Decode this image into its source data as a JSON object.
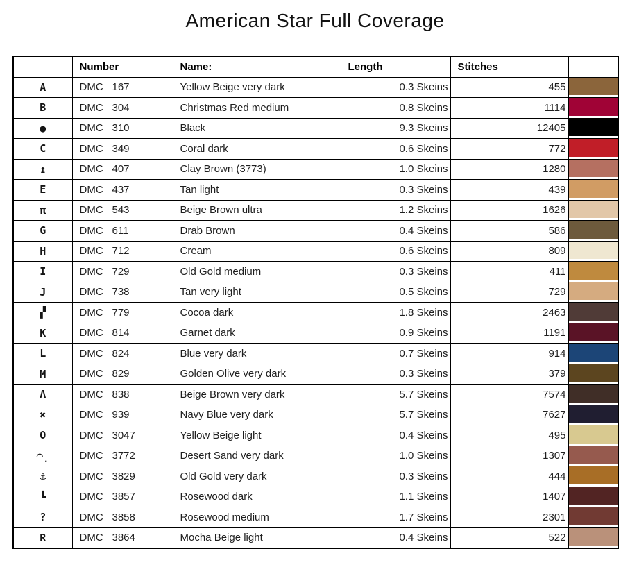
{
  "title": "American Star Full Coverage",
  "table": {
    "headers": {
      "symbol": "",
      "number": "Number",
      "name": "Name:",
      "length": "Length",
      "stitches": "Stitches",
      "color": ""
    },
    "rows": [
      {
        "symbol": "A",
        "brand": "DMC",
        "code": "167",
        "name": "Yellow Beige very dark",
        "length": "0.3 Skeins",
        "stitches": "455",
        "color": "#8b653b"
      },
      {
        "symbol": "B",
        "brand": "DMC",
        "code": "304",
        "name": "Christmas Red medium",
        "length": "0.8 Skeins",
        "stitches": "1114",
        "color": "#a00336"
      },
      {
        "symbol": "●",
        "brand": "DMC",
        "code": "310",
        "name": "Black",
        "length": "9.3 Skeins",
        "stitches": "12405",
        "color": "#000000"
      },
      {
        "symbol": "C",
        "brand": "DMC",
        "code": "349",
        "name": "Coral dark",
        "length": "0.6 Skeins",
        "stitches": "772",
        "color": "#c11e28"
      },
      {
        "symbol": "↥",
        "brand": "DMC",
        "code": "407",
        "name": "Clay Brown (3773)",
        "length": "1.0 Skeins",
        "stitches": "1280",
        "color": "#b57061"
      },
      {
        "symbol": "E",
        "brand": "DMC",
        "code": "437",
        "name": "Tan light",
        "length": "0.3 Skeins",
        "stitches": "439",
        "color": "#d19c64"
      },
      {
        "symbol": "π",
        "brand": "DMC",
        "code": "543",
        "name": "Beige Brown ultra",
        "length": "1.2 Skeins",
        "stitches": "1626",
        "color": "#e2c7a8"
      },
      {
        "symbol": "G",
        "brand": "DMC",
        "code": "611",
        "name": "Drab Brown",
        "length": "0.4 Skeins",
        "stitches": "586",
        "color": "#6d5a3c"
      },
      {
        "symbol": "H",
        "brand": "DMC",
        "code": "712",
        "name": "Cream",
        "length": "0.6 Skeins",
        "stitches": "809",
        "color": "#efe7d1"
      },
      {
        "symbol": "I",
        "brand": "DMC",
        "code": "729",
        "name": "Old Gold medium",
        "length": "0.3 Skeins",
        "stitches": "411",
        "color": "#bf8a3e"
      },
      {
        "symbol": "J",
        "brand": "DMC",
        "code": "738",
        "name": "Tan very light",
        "length": "0.5 Skeins",
        "stitches": "729",
        "color": "#d5ab80"
      },
      {
        "symbol": "▞",
        "brand": "DMC",
        "code": "779",
        "name": "Cocoa dark",
        "length": "1.8 Skeins",
        "stitches": "2463",
        "color": "#503b37"
      },
      {
        "symbol": "K",
        "brand": "DMC",
        "code": "814",
        "name": "Garnet dark",
        "length": "0.9 Skeins",
        "stitches": "1191",
        "color": "#5a1326"
      },
      {
        "symbol": "L",
        "brand": "DMC",
        "code": "824",
        "name": "Blue very dark",
        "length": "0.7 Skeins",
        "stitches": "914",
        "color": "#1c4577"
      },
      {
        "symbol": "M",
        "brand": "DMC",
        "code": "829",
        "name": "Golden Olive very dark",
        "length": "0.3 Skeins",
        "stitches": "379",
        "color": "#5c451f"
      },
      {
        "symbol": "Λ",
        "brand": "DMC",
        "code": "838",
        "name": "Beige Brown very dark",
        "length": "5.7 Skeins",
        "stitches": "7574",
        "color": "#402e27"
      },
      {
        "symbol": "✖",
        "brand": "DMC",
        "code": "939",
        "name": "Navy Blue very dark",
        "length": "5.7 Skeins",
        "stitches": "7627",
        "color": "#201e31"
      },
      {
        "symbol": "O",
        "brand": "DMC",
        "code": "3047",
        "name": "Yellow Beige light",
        "length": "0.4 Skeins",
        "stitches": "495",
        "color": "#d8c990"
      },
      {
        "symbol": "◠̣",
        "brand": "DMC",
        "code": "3772",
        "name": "Desert Sand very dark",
        "length": "1.0 Skeins",
        "stitches": "1307",
        "color": "#965a4e"
      },
      {
        "symbol": "⚓",
        "brand": "DMC",
        "code": "3829",
        "name": "Old Gold very dark",
        "length": "0.3 Skeins",
        "stitches": "444",
        "color": "#a86e26"
      },
      {
        "symbol": "┗",
        "brand": "DMC",
        "code": "3857",
        "name": "Rosewood dark",
        "length": "1.1 Skeins",
        "stitches": "1407",
        "color": "#522423"
      },
      {
        "symbol": "?",
        "brand": "DMC",
        "code": "3858",
        "name": "Rosewood medium",
        "length": "1.7 Skeins",
        "stitches": "2301",
        "color": "#713a33"
      },
      {
        "symbol": "R",
        "brand": "DMC",
        "code": "3864",
        "name": "Mocha Beige light",
        "length": "0.4 Skeins",
        "stitches": "522",
        "color": "#ba917a"
      }
    ]
  }
}
